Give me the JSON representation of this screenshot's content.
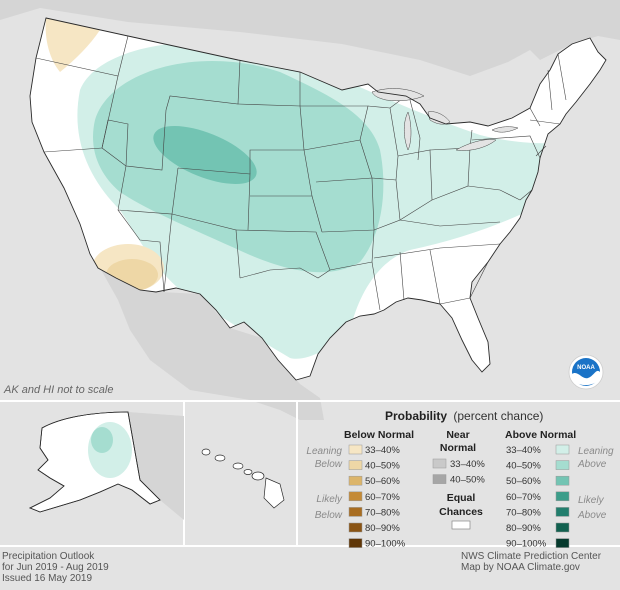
{
  "note_scale": "AK and HI not to scale",
  "noaa_logo_text": "NOAA",
  "legend": {
    "title_bold": "Probability",
    "title_rest": "(percent chance)",
    "below": {
      "heading": "Below Normal",
      "leaning": [
        "Leaning",
        "Below"
      ],
      "likely": [
        "Likely",
        "Below"
      ],
      "ranges": [
        "33–40%",
        "40–50%",
        "50–60%",
        "60–70%",
        "70–80%",
        "80–90%",
        "90–100%"
      ],
      "colors": [
        "#f6e6c4",
        "#eed7a6",
        "#dcb56a",
        "#c48a36",
        "#a86d21",
        "#8a5414",
        "#5f3607"
      ]
    },
    "near": {
      "heading": [
        "Near",
        "Normal"
      ],
      "ranges": [
        "33–40%",
        "40–50%"
      ],
      "colors": [
        "#c9c9c9",
        "#a6a6a6"
      ]
    },
    "equal": {
      "heading": [
        "Equal",
        "Chances"
      ],
      "color": "#ffffff"
    },
    "above": {
      "heading": "Above Normal",
      "leaning": [
        "Leaning",
        "Above"
      ],
      "likely": [
        "Likely",
        "Above"
      ],
      "ranges": [
        "33–40%",
        "40–50%",
        "50–60%",
        "60–70%",
        "70–80%",
        "80–90%",
        "90–100%"
      ],
      "colors": [
        "#d2efe8",
        "#a5ddd0",
        "#73c4b3",
        "#3c9d8a",
        "#227e6d",
        "#12614f",
        "#053a2d"
      ]
    }
  },
  "footer": {
    "left": [
      "Precipitation Outlook",
      "for Jun 2019 - Aug 2019",
      "Issued 16 May 2019"
    ],
    "right": [
      "NWS Climate Prediction Center",
      "Map by NOAA Climate.gov"
    ]
  },
  "colors": {
    "background": "#e3e3e3",
    "land": "#ffffff",
    "border": "#2b2b2b",
    "above_33_40": "#d2efe8",
    "above_40_50": "#a5ddd0",
    "above_50_60": "#73c4b3",
    "below_33_40": "#f6e6c4",
    "below_40_50": "#eed7a6"
  }
}
